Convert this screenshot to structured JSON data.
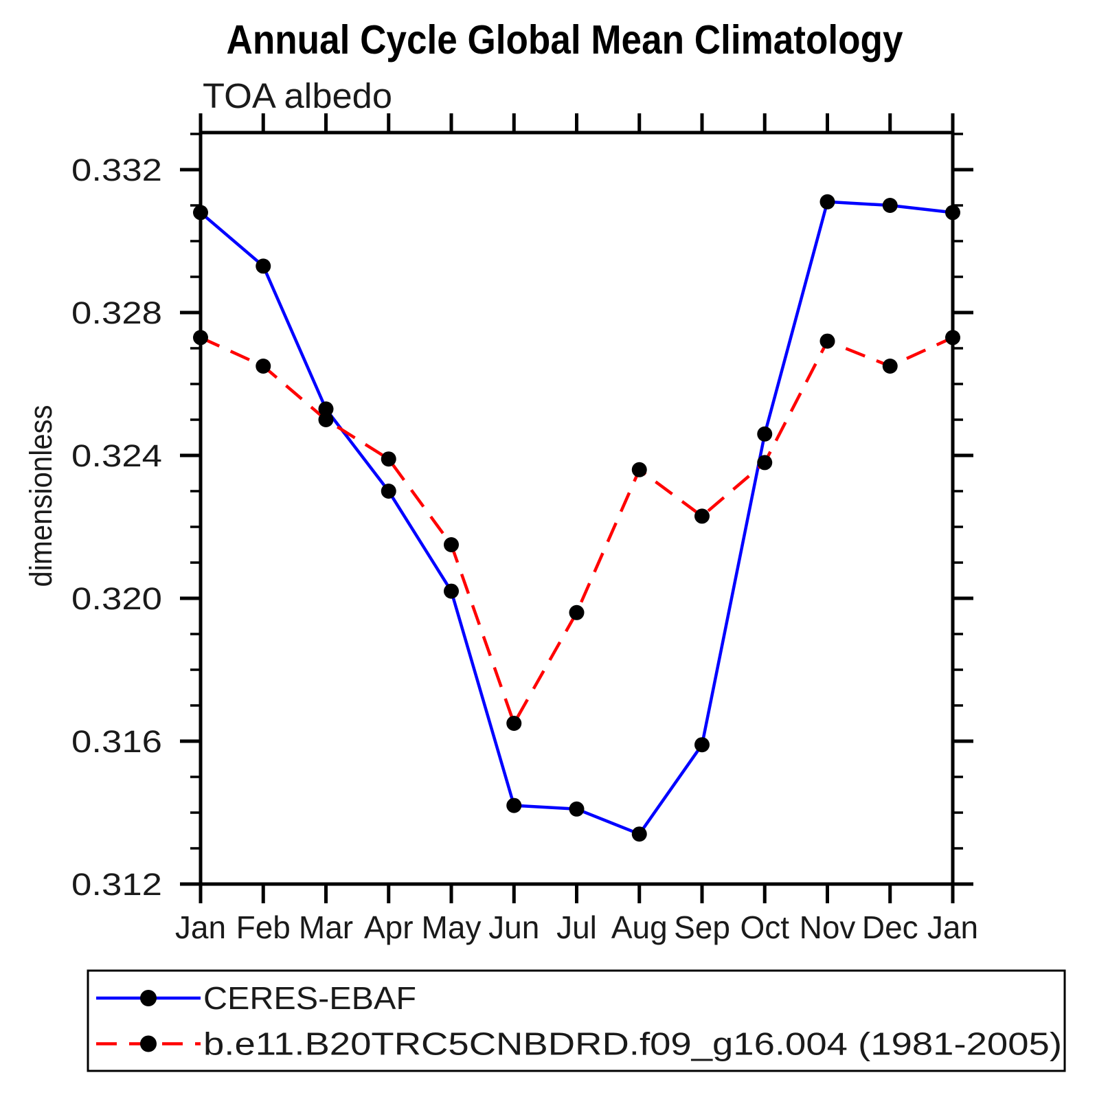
{
  "chart_data": {
    "type": "line",
    "title": "Annual Cycle Global Mean Climatology",
    "subtitle": "TOA albedo",
    "ylabel": "dimensionless",
    "xlabel": "",
    "categories": [
      "Jan",
      "Feb",
      "Mar",
      "Apr",
      "May",
      "Jun",
      "Jul",
      "Aug",
      "Sep",
      "Oct",
      "Nov",
      "Dec",
      "Jan"
    ],
    "series": [
      {
        "name": "CERES-EBAF",
        "color": "#0000ff",
        "line_style": "solid",
        "marker": "circle",
        "marker_color": "#000000",
        "values": [
          0.3308,
          0.3293,
          0.3253,
          0.323,
          0.3202,
          0.3142,
          0.3141,
          0.3134,
          0.3159,
          0.3246,
          0.3311,
          0.331,
          0.3308
        ]
      },
      {
        "name": "b.e11.B20TRC5CNBDRD.f09_g16.004 (1981-2005)",
        "color": "#ff0000",
        "line_style": "dashed",
        "marker": "circle",
        "marker_color": "#000000",
        "values": [
          0.3273,
          0.3265,
          0.325,
          0.3239,
          0.3215,
          0.3165,
          0.3196,
          0.3236,
          0.3223,
          0.3238,
          0.3272,
          0.3265,
          0.3273
        ]
      }
    ],
    "ylim": [
      0.312,
      0.333
    ],
    "ytick_labels": [
      "0.312",
      "0.316",
      "0.320",
      "0.324",
      "0.328",
      "0.332"
    ],
    "yticks_major": [
      0.312,
      0.316,
      0.32,
      0.324,
      0.328,
      0.332
    ],
    "ytick_minor_step": 0.001,
    "grid": false,
    "legend": {
      "position": "bottom-left",
      "boxed": true
    },
    "axis_color": "#000000"
  }
}
